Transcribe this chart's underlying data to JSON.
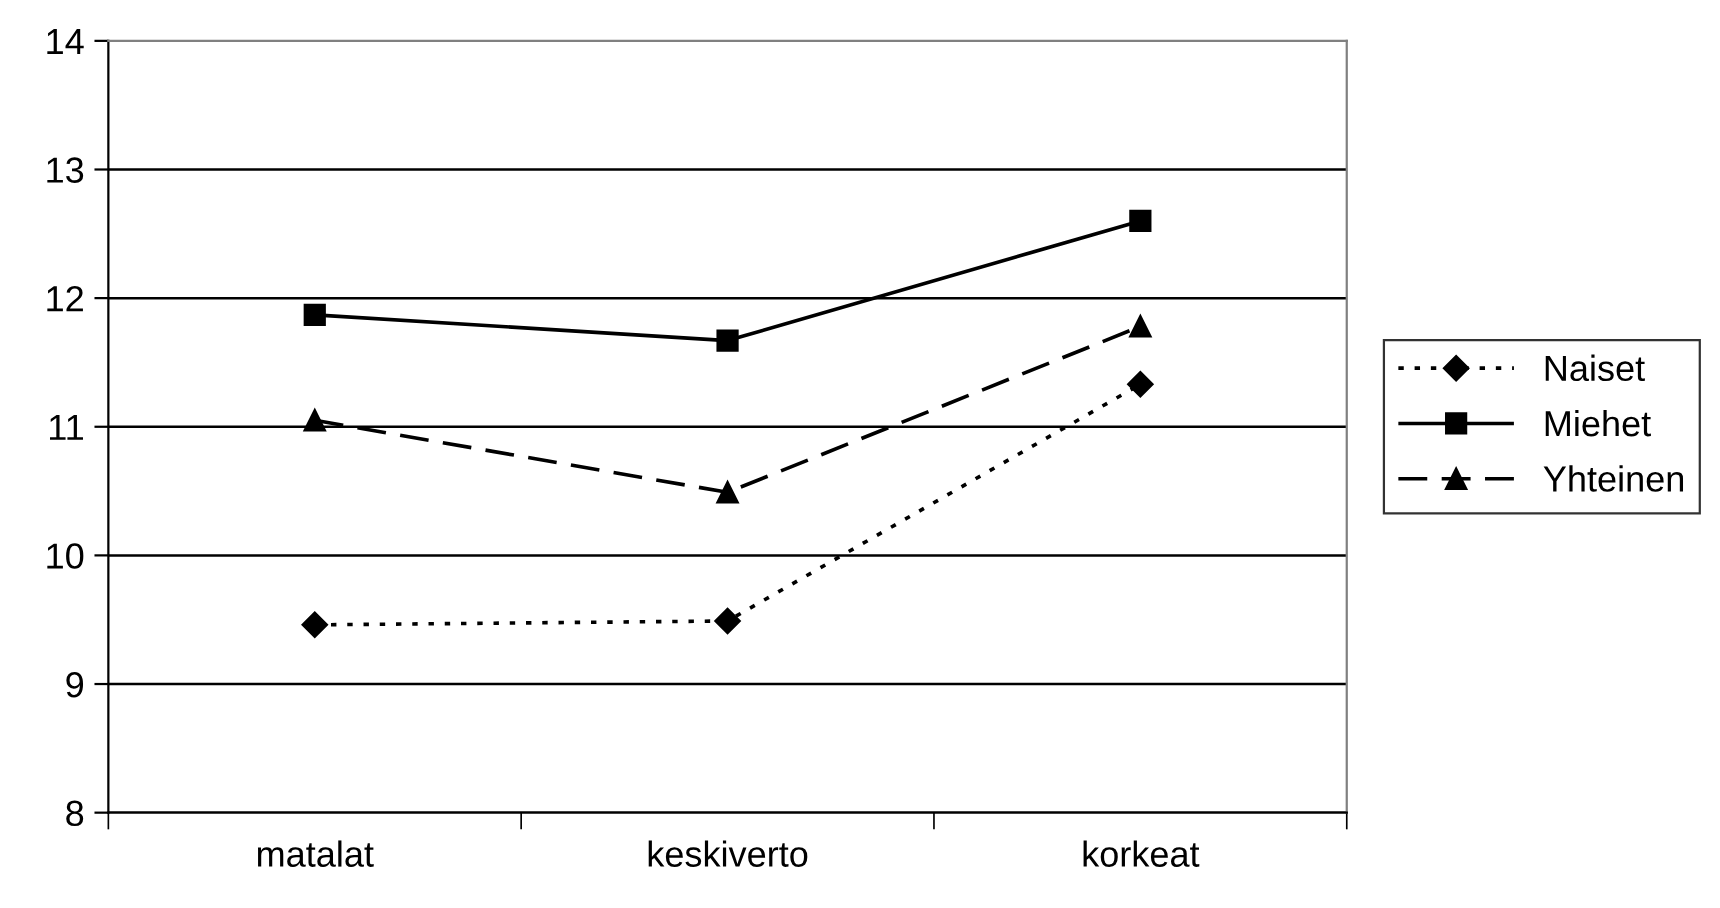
{
  "chart_data": {
    "type": "line",
    "categories": [
      "matalat",
      "keskiverto",
      "korkeat"
    ],
    "series": [
      {
        "name": "Naiset",
        "color": "#000000",
        "values": [
          9.46,
          9.49,
          11.33
        ],
        "marker": "diamond",
        "line_style": "dotted"
      },
      {
        "name": "Miehet",
        "color": "#000000",
        "values": [
          11.87,
          11.67,
          12.6
        ],
        "marker": "square",
        "line_style": "solid"
      },
      {
        "name": "Yhteinen",
        "color": "#000000",
        "values": [
          11.05,
          10.49,
          11.78
        ],
        "marker": "triangle",
        "line_style": "dashed"
      }
    ],
    "ylim": [
      8,
      14
    ],
    "yticks": [
      8,
      9,
      10,
      11,
      12,
      13,
      14
    ],
    "grid": "y",
    "legend": "right"
  }
}
